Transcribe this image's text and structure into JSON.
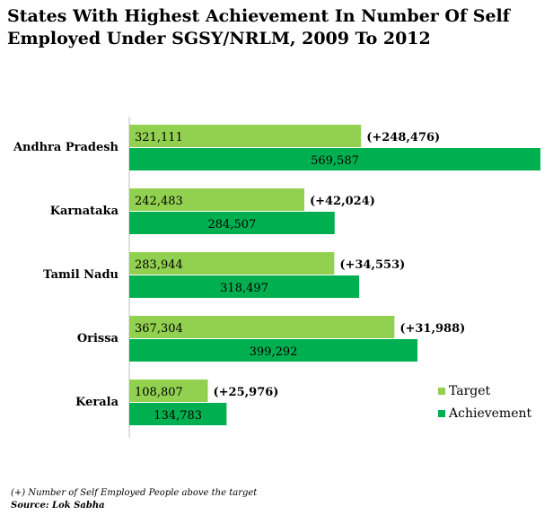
{
  "chart_data": {
    "type": "bar",
    "orientation": "horizontal",
    "title": "States With Highest Achievement In Number Of Self Employed Under SGSY/NRLM, 2009 To 2012",
    "categories": [
      "Andhra Pradesh",
      "Karnataka",
      "Tamil Nadu",
      "Orissa",
      "Kerala"
    ],
    "series": [
      {
        "name": "Target",
        "color": "#92d050",
        "values": [
          321111,
          242483,
          283944,
          367304,
          108807
        ],
        "labels": [
          "321,111",
          "242,483",
          "283,944",
          "367,304",
          "108,807"
        ]
      },
      {
        "name": "Achievement",
        "color": "#00b050",
        "values": [
          569587,
          284507,
          318497,
          399292,
          134783
        ],
        "labels": [
          "569,587",
          "284,507",
          "318,497",
          "399,292",
          "134,783"
        ]
      }
    ],
    "annotations": [
      "(+248,476)",
      "(+42,024)",
      "(+34,553)",
      "(+31,988)",
      "(+25,976)"
    ],
    "xlim": [
      0,
      569587
    ],
    "grid": false,
    "legend": "right"
  },
  "footnote": "(+) Number of Self Employed People above the target",
  "source": "Source: Lok Sabha"
}
